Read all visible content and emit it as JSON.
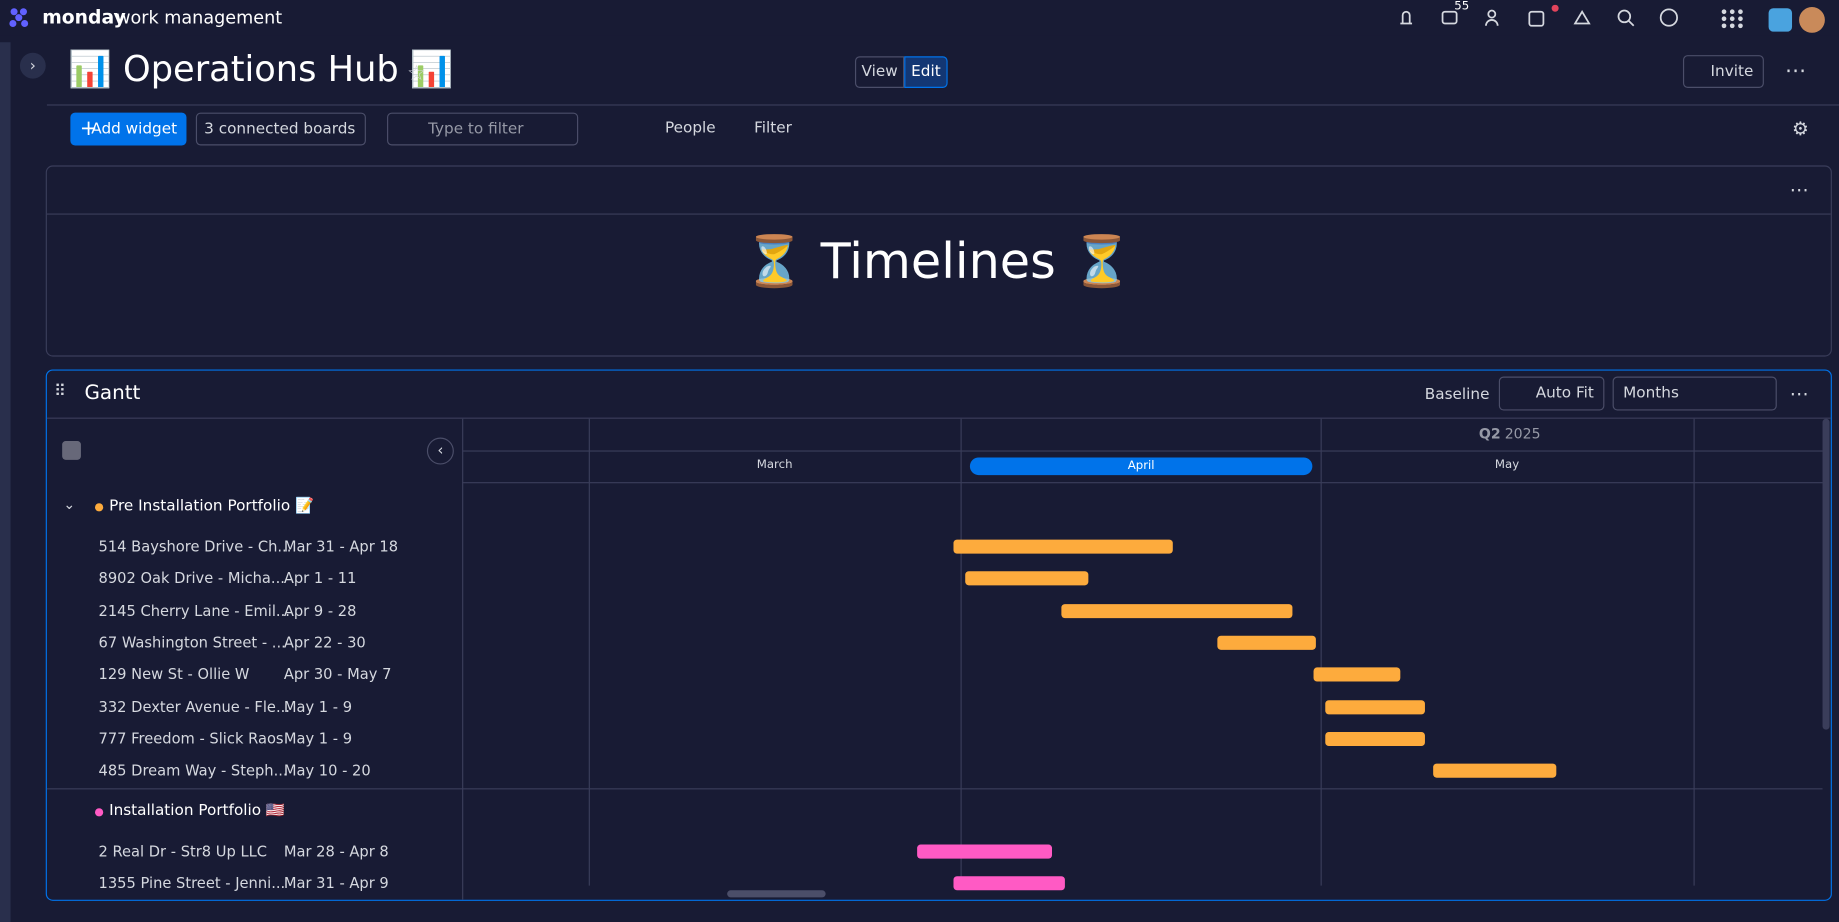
{
  "topbar": {
    "brand": "monday",
    "product": "work management",
    "notification_count": 55
  },
  "header": {
    "title": "📊 Operations Hub 📊",
    "view": "View",
    "edit": "Edit",
    "invite": "Invite"
  },
  "toolbar": {
    "add_widget": "Add widget",
    "connected_boards": "3 connected boards",
    "filter_placeholder": "Type to filter",
    "people": "People",
    "filter": "Filter"
  },
  "text_widget": {
    "title": "⏳ Timelines ⏳"
  },
  "gantt": {
    "title": "Gantt",
    "baseline": "Baseline",
    "auto_fit": "Auto Fit",
    "zoom": "Months",
    "quarter": "Q2",
    "year": "2025",
    "months": [
      "March",
      "April",
      "May"
    ],
    "groups": [
      {
        "name": "Pre Installation Portfolio 📝",
        "color": "#fdab3d",
        "items": [
          {
            "name": "514 Bayshore Drive - Ch...",
            "dates": "Mar 31 - Apr 18"
          },
          {
            "name": "8902 Oak Drive - Micha...",
            "dates": "Apr 1 - 11"
          },
          {
            "name": "2145 Cherry Lane - Emil...",
            "dates": "Apr 9 - 28"
          },
          {
            "name": "67 Washington Street - ...",
            "dates": "Apr 22 - 30"
          },
          {
            "name": "129 New St - Ollie W",
            "dates": "Apr 30 - May 7"
          },
          {
            "name": "332 Dexter Avenue - Fle...",
            "dates": "May 1 - 9"
          },
          {
            "name": "777 Freedom - Slick Raos",
            "dates": "May 1 - 9"
          },
          {
            "name": "485 Dream Way - Steph...",
            "dates": "May 10 - 20"
          }
        ]
      },
      {
        "name": "Installation Portfolio 🇺🇸",
        "color": "#ff5ac4",
        "items": [
          {
            "name": "2 Real Dr - Str8 Up LLC",
            "dates": "Mar 28 - Apr 8"
          },
          {
            "name": "1355 Pine Street - Jenni...",
            "dates": "Mar 31 - Apr 9"
          }
        ]
      }
    ]
  }
}
